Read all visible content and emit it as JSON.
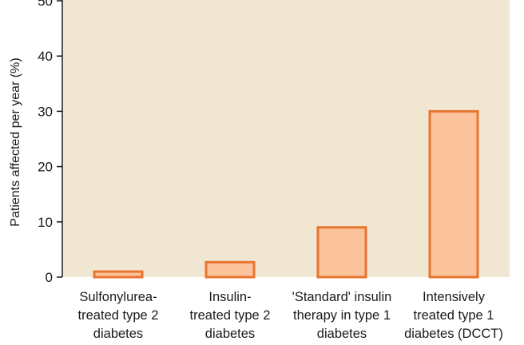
{
  "chart_data": {
    "type": "bar",
    "categories": [
      [
        "Sulfonylurea-",
        "treated type 2",
        "diabetes"
      ],
      [
        "Insulin-",
        "treated type 2",
        "diabetes"
      ],
      [
        "'Standard' insulin",
        "therapy in type 1",
        "diabetes"
      ],
      [
        "Intensively",
        "treated type 1",
        "diabetes (DCCT)"
      ]
    ],
    "values": [
      1,
      2.7,
      9,
      30
    ],
    "ylabel": "Patients affected per year (%)",
    "ylim": [
      0,
      50
    ],
    "yticks": [
      0,
      10,
      20,
      30,
      40,
      50
    ],
    "grid": false,
    "colors": {
      "plot_background": "#f0e6d2",
      "bar_fill": "#fbc39b",
      "bar_stroke": "#e8752f",
      "axis": "#1a1a1a"
    }
  }
}
